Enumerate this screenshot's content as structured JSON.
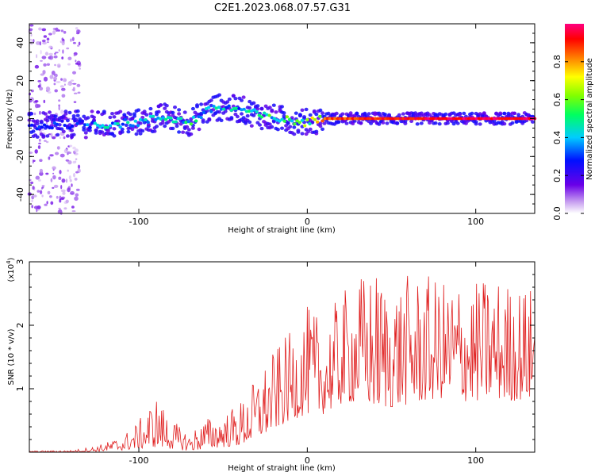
{
  "title": "C2E1.2023.068.07.57.G31",
  "chart_data": [
    {
      "type": "heatmap",
      "xlabel": "Height of straight line (km)",
      "ylabel": "Frequency (Hz)",
      "xlim": [
        -165,
        135
      ],
      "ylim": [
        -50,
        50
      ],
      "xticks": [
        {
          "value": -100,
          "label": "-100"
        },
        {
          "value": 0,
          "label": "0"
        },
        {
          "value": 100,
          "label": "100"
        }
      ],
      "yticks": [
        {
          "value": -40,
          "label": "-40"
        },
        {
          "value": -20,
          "label": "-20"
        },
        {
          "value": 0,
          "label": "0"
        },
        {
          "value": 20,
          "label": "20"
        },
        {
          "value": 40,
          "label": "40"
        }
      ],
      "colorbar": {
        "label": "Normalized spectral amplitude",
        "range": [
          0,
          1
        ],
        "ticks": [
          {
            "value": 0.0,
            "label": "0.0"
          },
          {
            "value": 0.2,
            "label": "0.2"
          },
          {
            "value": 0.4,
            "label": "0.4"
          },
          {
            "value": 0.6,
            "label": "0.6"
          },
          {
            "value": 0.8,
            "label": "0.8"
          }
        ]
      },
      "ridge": [
        {
          "x": -160,
          "f": -4,
          "amp": 0.3
        },
        {
          "x": -140,
          "f": -3,
          "amp": 0.35
        },
        {
          "x": -120,
          "f": -3,
          "amp": 0.5
        },
        {
          "x": -100,
          "f": -2,
          "amp": 0.4
        },
        {
          "x": -85,
          "f": 1,
          "amp": 0.45
        },
        {
          "x": -70,
          "f": -2,
          "amp": 0.55
        },
        {
          "x": -55,
          "f": 6,
          "amp": 0.5
        },
        {
          "x": -40,
          "f": 5,
          "amp": 0.45
        },
        {
          "x": -25,
          "f": 1,
          "amp": 0.55
        },
        {
          "x": -10,
          "f": -1,
          "amp": 0.6
        },
        {
          "x": 0,
          "f": -2,
          "amp": 0.65
        },
        {
          "x": 10,
          "f": 0,
          "amp": 0.9
        },
        {
          "x": 40,
          "f": 0,
          "amp": 0.95
        },
        {
          "x": 80,
          "f": 0,
          "amp": 1.0
        },
        {
          "x": 135,
          "f": 0,
          "amp": 1.0
        }
      ]
    },
    {
      "type": "line",
      "xlabel": "Height of straight line (km)",
      "ylabel": "SNR (10 * v/v)",
      "y_scale_label": "(x10",
      "y_scale_exponent": "4",
      "y_scale_close": ")",
      "xlim": [
        -165,
        135
      ],
      "ylim": [
        0,
        3
      ],
      "xticks": [
        {
          "value": -100,
          "label": "-100"
        },
        {
          "value": 0,
          "label": "0"
        },
        {
          "value": 100,
          "label": "100"
        }
      ],
      "yticks": [
        {
          "value": 1,
          "label": "1"
        },
        {
          "value": 2,
          "label": "2"
        },
        {
          "value": 3,
          "label": "3"
        }
      ],
      "series": [
        {
          "name": "SNR",
          "color": "#e02020",
          "envelope_x": [
            -165,
            -140,
            -125,
            -110,
            -100,
            -90,
            -80,
            -70,
            -60,
            -50,
            -40,
            -30,
            -20,
            -10,
            0,
            10,
            20,
            30,
            40,
            50,
            60,
            70,
            80,
            90,
            100,
            110,
            120,
            135
          ],
          "envelope_low": [
            0.0,
            0.0,
            0.01,
            0.03,
            0.05,
            0.08,
            0.05,
            0.02,
            0.05,
            0.08,
            0.1,
            0.2,
            0.35,
            0.5,
            0.6,
            0.6,
            0.75,
            0.8,
            0.7,
            0.7,
            0.75,
            0.8,
            0.85,
            0.8,
            0.8,
            0.85,
            0.8,
            0.85
          ],
          "envelope_high": [
            0.02,
            0.03,
            0.1,
            0.25,
            0.5,
            0.9,
            0.5,
            0.3,
            0.55,
            0.6,
            0.8,
            1.2,
            1.6,
            1.9,
            2.3,
            2.1,
            2.5,
            2.8,
            2.9,
            2.7,
            2.8,
            2.8,
            2.7,
            2.8,
            2.7,
            2.8,
            2.7,
            2.6
          ]
        }
      ]
    }
  ]
}
